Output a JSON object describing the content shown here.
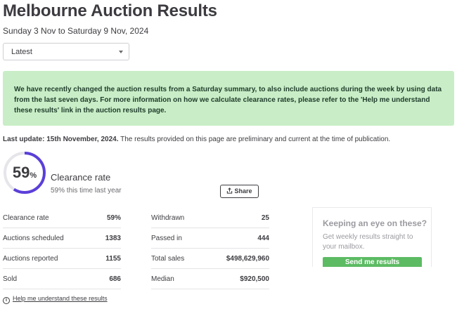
{
  "page": {
    "title": "Melbourne Auction Results",
    "date_range": "Sunday 3 Nov to Saturday 9 Nov, 2024"
  },
  "filter": {
    "selected": "Latest"
  },
  "notice": {
    "text": "We have recently changed the auction results from a Saturday summary, to also include auctions during the week by using data from the last seven days. For more information on how we calculate clearance rates, please refer to the 'Help me understand these results' link in the auction results page."
  },
  "update": {
    "label": "Last update: 15th November, 2024.",
    "note": " The results provided on this page are preliminary and current at the time of publication."
  },
  "clearance": {
    "value": "59",
    "unit": "%",
    "fraction": 0.59,
    "label": "Clearance rate",
    "previous": "59% this time last year",
    "accent_color": "#5b3fd9"
  },
  "share": {
    "label": "Share"
  },
  "stats_left": [
    {
      "label": "Clearance rate",
      "value": "59%"
    },
    {
      "label": "Auctions scheduled",
      "value": "1383"
    },
    {
      "label": "Auctions reported",
      "value": "1155"
    },
    {
      "label": "Sold",
      "value": "686"
    }
  ],
  "stats_right": [
    {
      "label": "Withdrawn",
      "value": "25"
    },
    {
      "label": "Passed in",
      "value": "444"
    },
    {
      "label": "Total sales",
      "value": "$498,629,960"
    },
    {
      "label": "Median",
      "value": "$920,500"
    }
  ],
  "promo": {
    "heading": "Keeping an eye on these?",
    "text": "Get weekly results straight to your mailbox.",
    "button": "Send me results",
    "button_color": "#5cbb63"
  },
  "help": {
    "link": "Help me understand these results",
    "icon": "info-icon"
  }
}
